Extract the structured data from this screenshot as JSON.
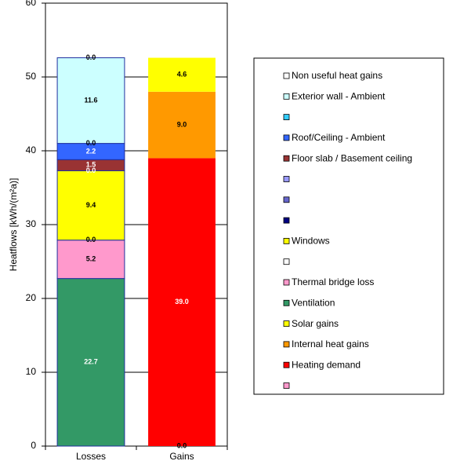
{
  "chart_data": {
    "type": "stacked_bar",
    "y_label": "Heatflows [kWh/(m²a)]",
    "categories": [
      "Losses",
      "Gains"
    ],
    "ylim": [
      0,
      60
    ],
    "yticks": [
      0,
      10,
      20,
      30,
      40,
      50,
      60
    ],
    "grid": true,
    "legend_position": "right",
    "series": [
      {
        "name": null,
        "color": "#ff99cc",
        "values": [
          null,
          0.0
        ],
        "value_labels": [
          null,
          "0.0"
        ]
      },
      {
        "name": "Heating demand",
        "color": "#ff0000",
        "values": [
          null,
          39.0
        ],
        "value_labels": [
          null,
          "39.0"
        ]
      },
      {
        "name": "Internal heat gains",
        "color": "#ff9900",
        "values": [
          null,
          9.0
        ],
        "value_labels": [
          null,
          "9.0"
        ]
      },
      {
        "name": "Solar gains",
        "color": "#ffff00",
        "values": [
          null,
          4.6
        ],
        "value_labels": [
          null,
          "4.6"
        ]
      },
      {
        "name": "Ventilation",
        "color": "#339966",
        "values": [
          22.7,
          null
        ],
        "value_labels": [
          "22.7",
          null
        ]
      },
      {
        "name": "Thermal bridge loss",
        "color": "#ff99cc",
        "values": [
          5.2,
          null
        ],
        "value_labels": [
          "5.2",
          null
        ]
      },
      {
        "name": null,
        "color": "#ffffff",
        "values": [
          0.0,
          null
        ],
        "value_labels": [
          "0.0",
          null
        ]
      },
      {
        "name": "Windows",
        "color": "#ffff00",
        "values": [
          9.4,
          null
        ],
        "value_labels": [
          "9.4",
          null
        ]
      },
      {
        "name": null,
        "color": "#000080",
        "values": [
          0.0,
          null
        ],
        "value_labels": [
          "0.0",
          null
        ]
      },
      {
        "name": null,
        "color": "#6666cc",
        "values": [
          null,
          null
        ]
      },
      {
        "name": null,
        "color": "#9999ff",
        "values": [
          null,
          null
        ]
      },
      {
        "name": "Floor slab / Basement ceiling",
        "color": "#993333",
        "values": [
          1.5,
          null
        ],
        "value_labels": [
          "1.5",
          null
        ]
      },
      {
        "name": "Roof/Ceiling - Ambient",
        "color": "#3366ff",
        "values": [
          2.2,
          null
        ],
        "value_labels": [
          "2.2",
          null
        ]
      },
      {
        "name": null,
        "color": "#33ccff",
        "values": [
          0.0,
          null
        ],
        "value_labels": [
          "0.0",
          null
        ]
      },
      {
        "name": "Exterior wall - Ambient",
        "color": "#ccffff",
        "values": [
          11.6,
          null
        ],
        "value_labels": [
          "11.6",
          null
        ]
      },
      {
        "name": "Non useful heat gains",
        "color": "#ffffff",
        "values": [
          0.0,
          null
        ],
        "value_labels": [
          "0.0",
          null
        ]
      }
    ]
  }
}
